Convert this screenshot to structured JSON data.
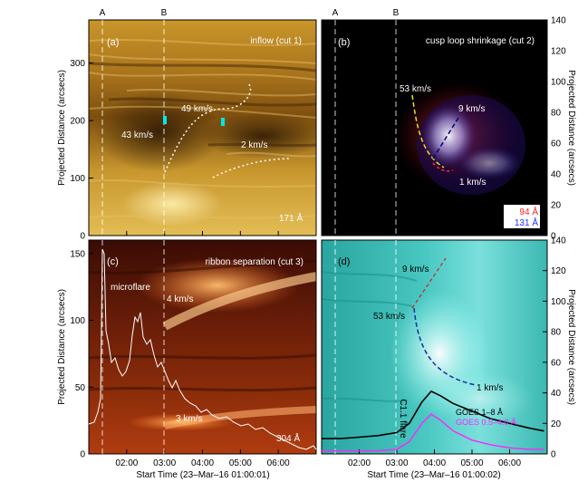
{
  "chart_data": [
    {
      "type": "heatmap",
      "panel_label": "(a)",
      "title": "inflow (cut 1)",
      "wavelength_label": "171 Å",
      "ylabel": "Projected Distance (arcsecs)",
      "y_ticks": [
        0,
        100,
        200,
        300
      ],
      "ylim": [
        0,
        375
      ],
      "colormap": "sdo-aia-171",
      "markers": [
        "A",
        "B"
      ],
      "speed_labels": [
        {
          "text": "49 km/s",
          "x": "03:40",
          "y": 208
        },
        {
          "text": "43 km/s",
          "x": "02:45",
          "y": 168
        },
        {
          "text": "2 km/s",
          "x": "05:25",
          "y": 140
        }
      ]
    },
    {
      "type": "heatmap",
      "panel_label": "(b)",
      "title": "cusp loop shrinkage (cut 2)",
      "ylabel": "Projected Distance (arcsecs)",
      "y_axis_side": "right",
      "y_ticks": [
        0,
        20,
        40,
        60,
        80,
        100,
        120,
        140
      ],
      "ylim": [
        0,
        140
      ],
      "markers": [
        "A",
        "B"
      ],
      "legend": [
        {
          "text": "94 Å",
          "color": "#ff2020"
        },
        {
          "text": "131 Å",
          "color": "#2030ff"
        }
      ],
      "speed_labels": [
        {
          "text": "53 km/s",
          "x": "03:15",
          "y": 100
        },
        {
          "text": "9 km/s",
          "x": "04:20",
          "y": 86
        },
        {
          "text": "1 km/s",
          "x": "04:30",
          "y": 36
        }
      ]
    },
    {
      "type": "heatmap",
      "panel_label": "(c)",
      "title": "ribbon separation (cut 3)",
      "wavelength_label": "304 Å",
      "ylabel": "Projected Distance (arcsecs)",
      "xlabel": "Start Time (23–Mar–16 01:00:01)",
      "x_ticks": [
        "02:00",
        "03:00",
        "04:00",
        "05:00",
        "06:00"
      ],
      "y_ticks": [
        0,
        50,
        100,
        150
      ],
      "ylim": [
        0,
        160
      ],
      "markers": [
        "A",
        "B"
      ],
      "annotations": [
        "microflare"
      ],
      "speed_labels": [
        {
          "text": "4 km/s",
          "x": "03:30",
          "y": 100
        },
        {
          "text": "3 km/s",
          "x": "03:30",
          "y": 30
        }
      ]
    },
    {
      "type": "line",
      "panel_label": "(d)",
      "ylabel": "Projected Distance (arcsecs)",
      "y_axis_side": "right",
      "xlabel": "Start Time (23–Mar–16 01:00:02)",
      "x_ticks": [
        "02:00",
        "03:00",
        "04:00",
        "05:00",
        "06:00"
      ],
      "y_ticks": [
        0,
        20,
        40,
        60,
        80,
        100,
        120,
        140
      ],
      "ylim": [
        0,
        140
      ],
      "markers": [
        "A",
        "B"
      ],
      "annotations": [
        "C1.1 flare"
      ],
      "speed_labels": [
        {
          "text": "9 km/s",
          "x": "03:15",
          "y": 115
        },
        {
          "text": "53 km/s",
          "x": "02:35",
          "y": 93
        },
        {
          "text": "1 km/s",
          "x": "05:15",
          "y": 43
        }
      ],
      "series": [
        {
          "name": "GOES 1–8 Å",
          "color": "#000000",
          "x": [
            "01:00",
            "01:30",
            "02:00",
            "02:30",
            "03:00",
            "03:20",
            "03:40",
            "03:55",
            "04:10",
            "04:30",
            "05:00",
            "05:30",
            "06:00",
            "06:30",
            "06:55"
          ],
          "values": [
            10,
            10,
            11,
            12,
            14,
            20,
            34,
            41,
            38,
            33,
            28,
            23,
            20,
            17,
            15
          ]
        },
        {
          "name": "GOES 0.5–4.0 Å",
          "color": "#ff22ff",
          "x": [
            "01:00",
            "01:30",
            "02:00",
            "02:30",
            "03:00",
            "03:20",
            "03:40",
            "03:55",
            "04:10",
            "04:30",
            "05:00",
            "05:30",
            "06:00",
            "06:30",
            "06:55"
          ],
          "values": [
            2,
            2,
            2,
            2,
            3,
            8,
            20,
            26,
            22,
            15,
            9,
            6,
            4,
            3,
            3
          ]
        }
      ]
    }
  ]
}
